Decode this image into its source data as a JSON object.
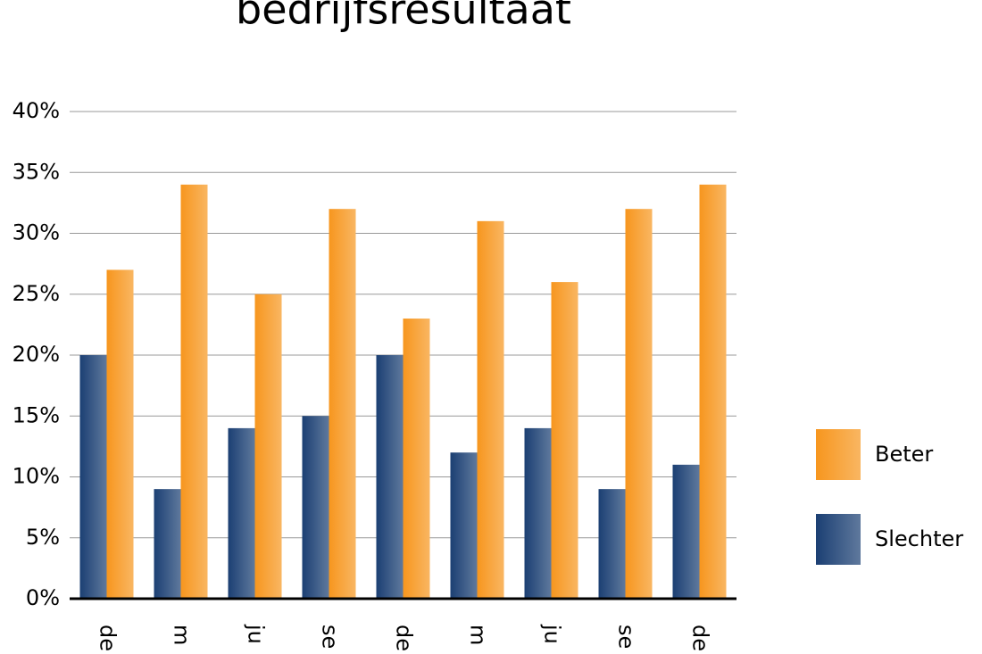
{
  "chart_data": {
    "type": "bar",
    "title": "bedrijfsresultaat",
    "categories": [
      "de",
      "m",
      "ju",
      "se",
      "de",
      "m",
      "ju",
      "se",
      "de"
    ],
    "series": [
      {
        "name": "Slechter",
        "color": "#1b3f73",
        "values": [
          20,
          9,
          14,
          15,
          20,
          12,
          14,
          9,
          11
        ]
      },
      {
        "name": "Beter",
        "color": "#f7961e",
        "values": [
          27,
          34,
          25,
          32,
          23,
          31,
          26,
          32,
          34
        ]
      }
    ],
    "ylim": [
      0,
      40
    ],
    "yticks": [
      {
        "value": 0,
        "label": "0%"
      },
      {
        "value": 5,
        "label": "5%"
      },
      {
        "value": 10,
        "label": "10%"
      },
      {
        "value": 15,
        "label": "15%"
      },
      {
        "value": 20,
        "label": "20%"
      },
      {
        "value": 25,
        "label": "25%"
      },
      {
        "value": 30,
        "label": "30%"
      },
      {
        "value": 35,
        "label": "35%"
      },
      {
        "value": 40,
        "label": "40%"
      }
    ],
    "grid": true,
    "legend": "right"
  }
}
